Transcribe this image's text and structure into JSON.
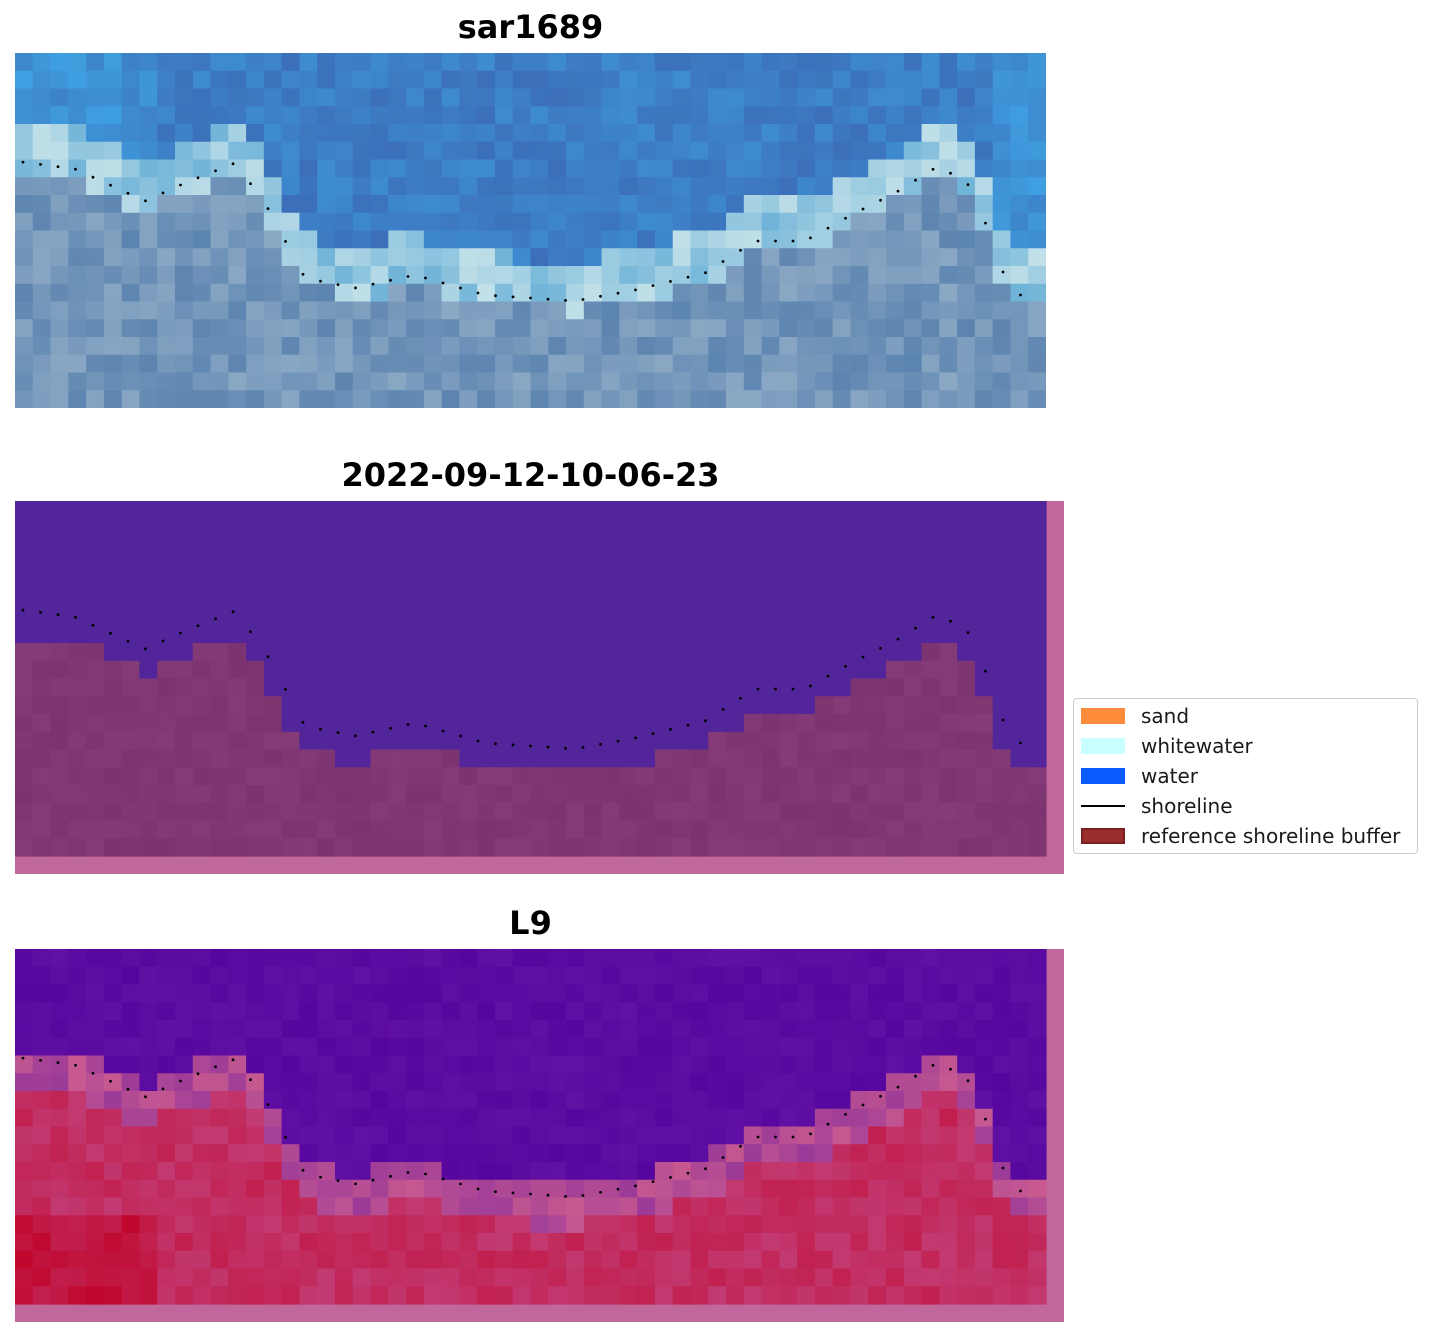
{
  "panels": [
    {
      "title": "sar1689",
      "kind": "rgb"
    },
    {
      "title": "2022-09-12-10-06-23",
      "kind": "classified"
    },
    {
      "title": "L9",
      "kind": "index"
    }
  ],
  "legend": {
    "items": [
      {
        "label": "sand",
        "color": "#ff8c3a",
        "kind": "patch"
      },
      {
        "label": "whitewater",
        "color": "#c8ffff",
        "kind": "patch"
      },
      {
        "label": "water",
        "color": "#0a5aff",
        "kind": "patch"
      },
      {
        "label": "shoreline",
        "color": "#000000",
        "kind": "line"
      },
      {
        "label": "reference shoreline buffer",
        "color": "#9b2d2d",
        "kind": "patch"
      }
    ]
  },
  "colors": {
    "buffer_tint": "#c0679b",
    "classified_water": "#52259a",
    "classified_land": "#7b346f",
    "index_water": "#56069e",
    "index_land": "#c23a72"
  }
}
